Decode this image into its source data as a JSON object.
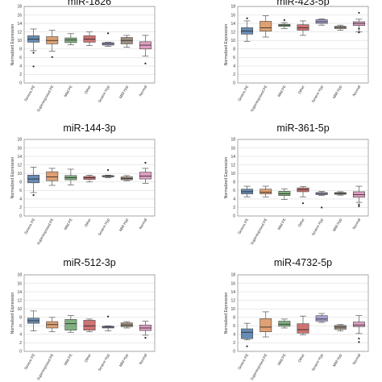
{
  "chart_data": [
    {
      "type": "box",
      "title": "miR-1826",
      "ylabel": "Normalized Expression",
      "ylim": [
        0,
        18
      ],
      "yticks": [
        0,
        2,
        4,
        6,
        8,
        10,
        12,
        14,
        16,
        18
      ],
      "grid": true,
      "categories": [
        "Severe PE",
        "Superimposed PE",
        "Mild PE",
        "Other",
        "Severe Hyp",
        "Mild Hyp",
        "Normal"
      ],
      "boxes": [
        {
          "min": 7.6,
          "q1": 9.6,
          "median": 10.3,
          "q3": 11.1,
          "max": 12.7,
          "outliers": [
            3.9,
            7.1
          ]
        },
        {
          "min": 7.5,
          "q1": 9.2,
          "median": 10.0,
          "q3": 10.9,
          "max": 12.4,
          "outliers": [
            6.1
          ]
        },
        {
          "min": 9.0,
          "q1": 9.5,
          "median": 10.1,
          "q3": 10.6,
          "max": 11.6,
          "outliers": []
        },
        {
          "min": 8.8,
          "q1": 9.6,
          "median": 10.3,
          "q3": 11.1,
          "max": 12.0,
          "outliers": []
        },
        {
          "min": 8.6,
          "q1": 8.9,
          "median": 9.2,
          "q3": 9.5,
          "max": 9.6,
          "outliers": [
            11.7
          ]
        },
        {
          "min": 8.4,
          "q1": 9.2,
          "median": 10.0,
          "q3": 10.7,
          "max": 11.2,
          "outliers": []
        },
        {
          "min": 6.3,
          "q1": 8.0,
          "median": 8.9,
          "q3": 9.7,
          "max": 11.2,
          "outliers": [
            4.6
          ]
        }
      ]
    },
    {
      "type": "box",
      "title": "miR-423-5p",
      "ylabel": "Normalized Expression",
      "ylim": [
        0,
        18
      ],
      "yticks": [
        0,
        2,
        4,
        6,
        8,
        10,
        12,
        14,
        16,
        18
      ],
      "grid": true,
      "categories": [
        "Severe PE",
        "Superimposed PE",
        "Mild PE",
        "Other",
        "Severe Hyp",
        "Mild Hyp",
        "Normal"
      ],
      "boxes": [
        {
          "min": 9.8,
          "q1": 11.5,
          "median": 12.2,
          "q3": 13.0,
          "max": 14.6,
          "outliers": [
            15.2
          ]
        },
        {
          "min": 10.8,
          "q1": 12.2,
          "median": 13.0,
          "q3": 14.5,
          "max": 15.8,
          "outliers": []
        },
        {
          "min": 12.8,
          "q1": 13.3,
          "median": 13.6,
          "q3": 13.8,
          "max": 14.2,
          "outliers": [
            14.8
          ]
        },
        {
          "min": 11.2,
          "q1": 12.4,
          "median": 13.0,
          "q3": 13.7,
          "max": 14.6,
          "outliers": []
        },
        {
          "min": 13.6,
          "q1": 14.0,
          "median": 14.4,
          "q3": 14.9,
          "max": 15.1,
          "outliers": []
        },
        {
          "min": 12.4,
          "q1": 12.8,
          "median": 13.1,
          "q3": 13.3,
          "max": 13.6,
          "outliers": []
        },
        {
          "min": 12.0,
          "q1": 13.5,
          "median": 14.0,
          "q3": 14.4,
          "max": 15.0,
          "outliers": [
            16.5,
            12.8,
            11.9
          ]
        }
      ]
    },
    {
      "type": "box",
      "title": "miR-144-3p",
      "ylabel": "Normalized Expression",
      "ylim": [
        0,
        18
      ],
      "yticks": [
        0,
        2,
        4,
        6,
        8,
        10,
        12,
        14,
        16,
        18
      ],
      "grid": true,
      "categories": [
        "Severe PE",
        "Superimposed PE",
        "Mild PE",
        "Other",
        "Severe Hyp",
        "Mild Hyp",
        "Normal"
      ],
      "boxes": [
        {
          "min": 5.5,
          "q1": 7.8,
          "median": 8.7,
          "q3": 9.6,
          "max": 11.5,
          "outliers": [
            4.9
          ]
        },
        {
          "min": 7.2,
          "q1": 8.3,
          "median": 9.2,
          "q3": 10.4,
          "max": 11.2,
          "outliers": []
        },
        {
          "min": 7.3,
          "q1": 8.5,
          "median": 9.0,
          "q3": 9.5,
          "max": 11.0,
          "outliers": []
        },
        {
          "min": 8.0,
          "q1": 8.6,
          "median": 9.0,
          "q3": 9.3,
          "max": 9.6,
          "outliers": []
        },
        {
          "min": 9.0,
          "q1": 9.2,
          "median": 9.3,
          "q3": 9.5,
          "max": 9.6,
          "outliers": [
            10.8
          ]
        },
        {
          "min": 8.3,
          "q1": 8.5,
          "median": 8.8,
          "q3": 9.2,
          "max": 9.5,
          "outliers": []
        },
        {
          "min": 7.7,
          "q1": 8.7,
          "median": 9.4,
          "q3": 10.3,
          "max": 11.2,
          "outliers": [
            12.5
          ]
        }
      ]
    },
    {
      "type": "box",
      "title": "miR-361-5p",
      "ylabel": "Normalized Expression",
      "ylim": [
        0,
        18
      ],
      "yticks": [
        0,
        2,
        4,
        6,
        8,
        10,
        12,
        14,
        16,
        18
      ],
      "grid": true,
      "categories": [
        "Severe PE",
        "Superimposed PE",
        "Mild PE",
        "Other",
        "Severe Hyp",
        "Mild Hyp",
        "Normal"
      ],
      "boxes": [
        {
          "min": 4.5,
          "q1": 5.2,
          "median": 5.7,
          "q3": 6.3,
          "max": 7.0,
          "outliers": []
        },
        {
          "min": 4.5,
          "q1": 5.2,
          "median": 5.6,
          "q3": 6.3,
          "max": 7.0,
          "outliers": []
        },
        {
          "min": 3.9,
          "q1": 4.8,
          "median": 5.2,
          "q3": 5.8,
          "max": 6.4,
          "outliers": []
        },
        {
          "min": 4.5,
          "q1": 5.7,
          "median": 6.2,
          "q3": 6.6,
          "max": 6.9,
          "outliers": [
            3.0
          ]
        },
        {
          "min": 4.8,
          "q1": 5.0,
          "median": 5.3,
          "q3": 5.5,
          "max": 5.8,
          "outliers": [
            2.0
          ]
        },
        {
          "min": 4.9,
          "q1": 5.1,
          "median": 5.3,
          "q3": 5.5,
          "max": 5.7,
          "outliers": []
        },
        {
          "min": 3.2,
          "q1": 4.4,
          "median": 5.0,
          "q3": 5.7,
          "max": 7.0,
          "outliers": [
            2.3,
            2.7
          ]
        }
      ]
    },
    {
      "type": "box",
      "title": "miR-512-3p",
      "ylabel": "Normalized Expression",
      "ylim": [
        0,
        18
      ],
      "yticks": [
        0,
        2,
        4,
        6,
        8,
        10,
        12,
        14,
        16,
        18
      ],
      "grid": true,
      "categories": [
        "Severe PE",
        "Superimposed PE",
        "Mild PE",
        "Other",
        "Severe Hyp",
        "Mild Hyp",
        "Normal"
      ],
      "boxes": [
        {
          "min": 4.8,
          "q1": 6.6,
          "median": 7.2,
          "q3": 7.8,
          "max": 9.5,
          "outliers": []
        },
        {
          "min": 4.6,
          "q1": 5.5,
          "median": 6.3,
          "q3": 7.0,
          "max": 8.0,
          "outliers": []
        },
        {
          "min": 4.5,
          "q1": 5.0,
          "median": 6.5,
          "q3": 7.5,
          "max": 8.4,
          "outliers": []
        },
        {
          "min": 4.6,
          "q1": 5.0,
          "median": 6.0,
          "q3": 7.3,
          "max": 7.6,
          "outliers": []
        },
        {
          "min": 4.8,
          "q1": 5.5,
          "median": 5.7,
          "q3": 5.9,
          "max": 6.0,
          "outliers": [
            8.2
          ]
        },
        {
          "min": 5.5,
          "q1": 5.8,
          "median": 6.2,
          "q3": 6.7,
          "max": 7.0,
          "outliers": []
        },
        {
          "min": 3.8,
          "q1": 4.9,
          "median": 5.5,
          "q3": 6.2,
          "max": 7.1,
          "outliers": [
            3.2
          ]
        }
      ]
    },
    {
      "type": "box",
      "title": "miR-4732-5p",
      "ylabel": "Normalized Expression",
      "ylim": [
        0,
        18
      ],
      "yticks": [
        0,
        2,
        4,
        6,
        8,
        10,
        12,
        14,
        16,
        18
      ],
      "grid": true,
      "categories": [
        "Severe PE",
        "Superimposed PE",
        "Mild PE",
        "Other",
        "Severe Hyp",
        "Mild Hyp",
        "Normal"
      ],
      "boxes": [
        {
          "min": 2.7,
          "q1": 3.0,
          "median": 4.5,
          "q3": 5.3,
          "max": 6.6,
          "outliers": [
            1.2
          ]
        },
        {
          "min": 3.4,
          "q1": 4.6,
          "median": 5.7,
          "q3": 7.7,
          "max": 9.3,
          "outliers": []
        },
        {
          "min": 5.5,
          "q1": 5.9,
          "median": 6.4,
          "q3": 7.1,
          "max": 7.6,
          "outliers": []
        },
        {
          "min": 3.9,
          "q1": 4.3,
          "median": 5.1,
          "q3": 6.5,
          "max": 8.3,
          "outliers": []
        },
        {
          "min": 6.8,
          "q1": 7.1,
          "median": 7.6,
          "q3": 8.4,
          "max": 8.9,
          "outliers": []
        },
        {
          "min": 4.8,
          "q1": 5.2,
          "median": 5.7,
          "q3": 6.1,
          "max": 6.3,
          "outliers": []
        },
        {
          "min": 4.2,
          "q1": 5.8,
          "median": 6.2,
          "q3": 6.9,
          "max": 8.4,
          "outliers": [
            2.2,
            3.0
          ]
        }
      ]
    }
  ],
  "colors": {
    "box_fills": [
      "#4e79a7",
      "#d9915a",
      "#6ca36b",
      "#c65b5b",
      "#9b8fc8",
      "#8d7b68",
      "#d98db6"
    ],
    "grid": "#dddddd",
    "axis": "#888888",
    "points": "#222222"
  }
}
